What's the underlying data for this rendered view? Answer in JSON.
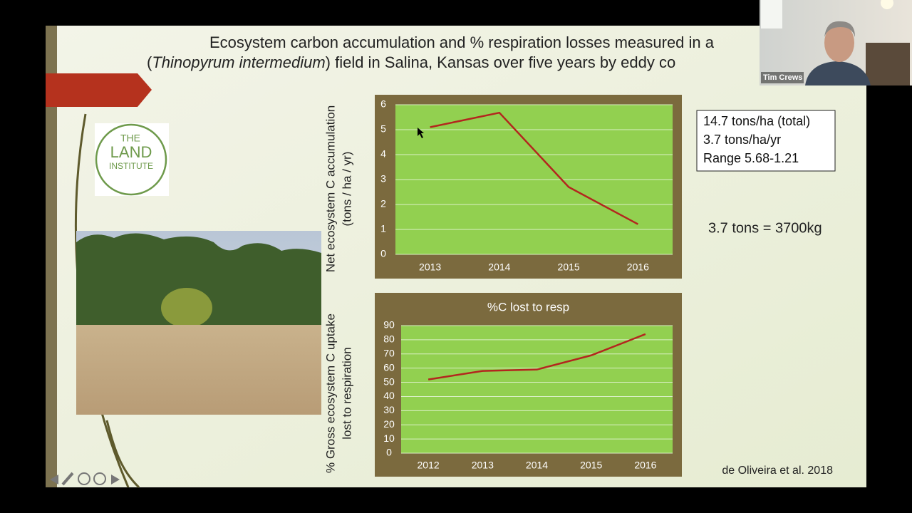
{
  "slide": {
    "title_line1": "Ecosystem carbon accumulation and % respiration losses measured in a",
    "title_line2": [
      "(",
      "Thinopyrum intermedium",
      ") field in Salina, Kansas over five years by eddy co"
    ],
    "summary_box": [
      "14.7 tons/ha (total)",
      "3.7 tons/ha/yr",
      "Range 5.68-1.21"
    ],
    "conversion_note": "3.7 tons = 3700kg",
    "citation": "de Oliveira et al. 2018"
  },
  "logo": [
    "THE",
    "LAND",
    "INSTITUTE"
  ],
  "webcam": {
    "name": "Tim Crews"
  },
  "chart_data": [
    {
      "type": "line",
      "categories": [
        "2013",
        "2014",
        "2015",
        "2016"
      ],
      "values": [
        5.1,
        5.68,
        2.7,
        1.21
      ],
      "color": "#b3261e",
      "ylim": [
        0,
        6
      ],
      "yticks": [
        0,
        1,
        2,
        3,
        4,
        5,
        6
      ],
      "grid": true,
      "ylabel": [
        "Net ecosystem C accumulation",
        "(tons / ha / yr)"
      ]
    },
    {
      "type": "line",
      "title": "%C lost to resp",
      "categories": [
        "2012",
        "2013",
        "2014",
        "2015",
        "2016"
      ],
      "values": [
        52,
        58,
        59,
        69,
        84
      ],
      "color": "#b3261e",
      "ylim": [
        0,
        90
      ],
      "yticks": [
        0,
        10,
        20,
        30,
        40,
        50,
        60,
        70,
        80,
        90
      ],
      "grid": true,
      "ylabel": [
        "% Gross ecosystem C uptake",
        "lost to respiration"
      ]
    }
  ]
}
